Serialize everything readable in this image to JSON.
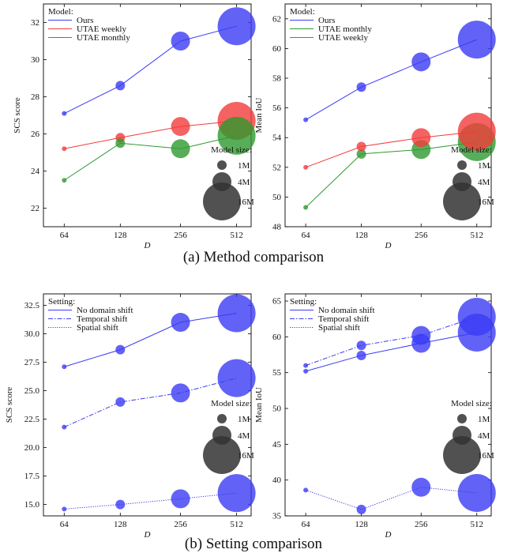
{
  "captions": {
    "a": "(a) Method comparison",
    "b": "(b) Setting comparison"
  },
  "size_legend": {
    "title": "Model size:",
    "entries": [
      {
        "label": "1M",
        "size": 1
      },
      {
        "label": "4M",
        "size": 4
      },
      {
        "label": "16M",
        "size": 16
      }
    ]
  },
  "chart_data": [
    {
      "type": "scatter",
      "id": "a-left",
      "xlabel": "D",
      "ylabel": "SCS score",
      "categories": [
        "64",
        "128",
        "256",
        "512"
      ],
      "ylim": [
        21,
        33
      ],
      "yticks": [
        22,
        24,
        26,
        28,
        30,
        32
      ],
      "ytick_labels": [
        "22",
        "24",
        "26",
        "28",
        "30",
        "32"
      ],
      "legend_title": "Model:",
      "legend_position": "top-left",
      "marker_sizes": [
        1,
        4,
        16,
        64
      ],
      "series": [
        {
          "name": "Ours",
          "color": "#3b3bf5",
          "dash": "solid",
          "values": [
            27.1,
            28.6,
            31.0,
            31.8
          ]
        },
        {
          "name": "UTAE weekly",
          "color": "#f23b3b",
          "dash": "solid",
          "values": [
            25.2,
            25.8,
            26.4,
            26.7
          ]
        },
        {
          "name": "UTAE monthly",
          "color": "#2e9a2e",
          "dash": "solid",
          "values": [
            23.5,
            25.5,
            25.2,
            25.9
          ]
        }
      ]
    },
    {
      "type": "scatter",
      "id": "a-right",
      "xlabel": "D",
      "ylabel": "Mean IoU",
      "categories": [
        "64",
        "128",
        "256",
        "512"
      ],
      "ylim": [
        48,
        63
      ],
      "yticks": [
        48,
        50,
        52,
        54,
        56,
        58,
        60,
        62
      ],
      "ytick_labels": [
        "48",
        "50",
        "52",
        "54",
        "56",
        "58",
        "60",
        "62"
      ],
      "legend_title": "Model:",
      "legend_position": "top-left",
      "marker_sizes": [
        1,
        4,
        16,
        64
      ],
      "series": [
        {
          "name": "Ours",
          "color": "#3b3bf5",
          "dash": "solid",
          "values": [
            55.2,
            57.4,
            59.1,
            60.6
          ]
        },
        {
          "name": "UTAE monthly",
          "color": "#2e9a2e",
          "dash": "solid",
          "values": [
            49.3,
            52.9,
            53.2,
            53.7
          ]
        },
        {
          "name": "UTAE weekly",
          "color": "#f23b3b",
          "dash": "solid",
          "values": [
            52.0,
            53.4,
            54.0,
            54.4
          ]
        }
      ]
    },
    {
      "type": "scatter",
      "id": "b-left",
      "xlabel": "D",
      "ylabel": "SCS score",
      "categories": [
        "64",
        "128",
        "256",
        "512"
      ],
      "ylim": [
        14,
        33.5
      ],
      "yticks": [
        15,
        17.5,
        20,
        22.5,
        25,
        27.5,
        30,
        32.5
      ],
      "ytick_labels": [
        "15.0",
        "17.5",
        "20.0",
        "22.5",
        "25.0",
        "27.5",
        "30.0",
        "32.5"
      ],
      "legend_title": "Setting:",
      "legend_position": "top-left",
      "marker_sizes": [
        1,
        4,
        16,
        64
      ],
      "series": [
        {
          "name": "No domain shift",
          "color": "#3b3bf5",
          "dash": "solid",
          "values": [
            27.1,
            28.6,
            31.0,
            31.8
          ]
        },
        {
          "name": "Temporal shift",
          "color": "#3b3bf5",
          "dash": "dashdot",
          "values": [
            21.8,
            24.0,
            24.8,
            26.1
          ]
        },
        {
          "name": "Spatial shift",
          "color": "#3b3bf5",
          "dash": "dotted",
          "values": [
            14.6,
            15.0,
            15.5,
            16.0
          ]
        }
      ]
    },
    {
      "type": "scatter",
      "id": "b-right",
      "xlabel": "D",
      "ylabel": "Mean IoU",
      "categories": [
        "64",
        "128",
        "256",
        "512"
      ],
      "ylim": [
        35,
        66
      ],
      "yticks": [
        35,
        40,
        45,
        50,
        55,
        60,
        65
      ],
      "ytick_labels": [
        "35",
        "40",
        "45",
        "50",
        "55",
        "60",
        "65"
      ],
      "legend_title": "Setting:",
      "legend_position": "top-left",
      "marker_sizes": [
        1,
        4,
        16,
        64
      ],
      "series": [
        {
          "name": "No domain shift",
          "color": "#3b3bf5",
          "dash": "solid",
          "values": [
            55.2,
            57.4,
            59.1,
            60.6
          ]
        },
        {
          "name": "Temporal shift",
          "color": "#3b3bf5",
          "dash": "dashdot",
          "values": [
            56.0,
            58.8,
            60.2,
            62.8
          ]
        },
        {
          "name": "Spatial shift",
          "color": "#3b3bf5",
          "dash": "dotted",
          "values": [
            38.6,
            35.9,
            39.0,
            38.2
          ]
        }
      ]
    }
  ]
}
